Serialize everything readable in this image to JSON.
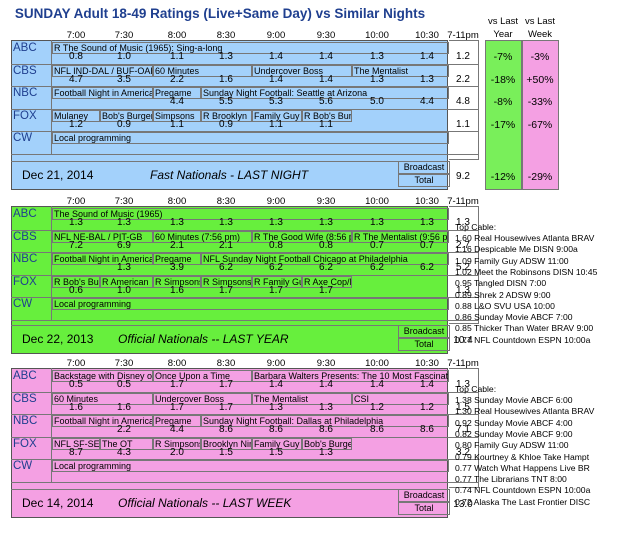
{
  "chart_data": {
    "type": "table",
    "title": "SUNDAY Adult 18-49 Ratings (Live+Same Day) vs Similar Nights",
    "columns": [
      "7:00",
      "7:30",
      "8:00",
      "8:30",
      "9:00",
      "9:30",
      "10:00",
      "10:30",
      "7-11pm"
    ],
    "compare_headers": {
      "last_year_top": "vs Last",
      "last_year_bottom": "Year",
      "last_week_top": "vs Last",
      "last_week_bottom": "Week"
    },
    "panels": [
      {
        "id": "p1",
        "date": "Dec 21, 2014",
        "label": "Fast Nationals - LAST NIGHT",
        "broadcast_label": "Broadcast",
        "total_label": "Total",
        "broadcast_total": "9.2",
        "vs_last_year_total": "-12%",
        "vs_last_week_total": "-29%",
        "networks": [
          {
            "name": "ABC",
            "programs": [
              {
                "title": "R The Sound of Music (1965): Sing-a-long",
                "start": 0,
                "span": 8
              }
            ],
            "values": [
              "0.8",
              "1.0",
              "1.1",
              "1.3",
              "1.4",
              "1.4",
              "1.3",
              "1.4"
            ],
            "total": "1.2",
            "vs_year": "-7%",
            "vs_week": "-3%"
          },
          {
            "name": "CBS",
            "programs": [
              {
                "title": "NFL IND-DAL / BUF-OAK",
                "start": 0,
                "span": 2
              },
              {
                "title": "60 Minutes",
                "start": 2,
                "span": 2
              },
              {
                "title": "Undercover Boss",
                "start": 4,
                "span": 2
              },
              {
                "title": "The Mentalist",
                "start": 6,
                "span": 2
              }
            ],
            "values": [
              "4.7",
              "3.5",
              "2.2",
              "1.6",
              "1.4",
              "1.4",
              "1.3",
              "1.3"
            ],
            "total": "2.2",
            "vs_year": "-18%",
            "vs_week": "+50%"
          },
          {
            "name": "NBC",
            "programs": [
              {
                "title": "Football Night in America",
                "start": 0,
                "span": 2
              },
              {
                "title": "Pregame",
                "start": 2,
                "span": 1
              },
              {
                "title": "Sunday Night Football: Seattle at Arizona",
                "start": 3,
                "span": 5
              }
            ],
            "values": [
              "",
              "",
              "4.4",
              "5.5",
              "5.3",
              "5.6",
              "5.0",
              "4.4"
            ],
            "total": "4.8",
            "vs_year": "-8%",
            "vs_week": "-33%"
          },
          {
            "name": "FOX",
            "programs": [
              {
                "title": "Mulaney",
                "start": 0,
                "span": 1
              },
              {
                "title": "Bob's Burgers",
                "start": 1,
                "span": 1
              },
              {
                "title": "Simpsons",
                "start": 2,
                "span": 1
              },
              {
                "title": "R Brooklyn",
                "start": 3,
                "span": 1
              },
              {
                "title": "Family Guy",
                "start": 4,
                "span": 1
              },
              {
                "title": "R Bob's Bur",
                "start": 5,
                "span": 1
              }
            ],
            "values": [
              "1.2",
              "0.9",
              "1.1",
              "0.9",
              "1.1",
              "1.1",
              "",
              ""
            ],
            "total": "1.1",
            "vs_year": "-17%",
            "vs_week": "-67%"
          },
          {
            "name": "CW",
            "programs": [
              {
                "title": "Local programming",
                "start": 0,
                "span": 8
              }
            ],
            "values": [
              "",
              "",
              "",
              "",
              "",
              "",
              "",
              ""
            ],
            "total": "",
            "vs_year": "",
            "vs_week": ""
          }
        ]
      },
      {
        "id": "p2",
        "date": "Dec 22, 2013",
        "label": "Official Nationals -- LAST YEAR",
        "broadcast_label": "Broadcast",
        "total_label": "Total",
        "broadcast_total": "10.4",
        "networks": [
          {
            "name": "ABC",
            "programs": [
              {
                "title": "The Sound of Music (1965)",
                "start": 0,
                "span": 8
              }
            ],
            "values": [
              "1.3",
              "1.3",
              "1.3",
              "1.3",
              "1.3",
              "1.3",
              "1.3",
              "1.3"
            ],
            "total": "1.3"
          },
          {
            "name": "CBS",
            "programs": [
              {
                "title": "NFL NE-BAL / PIT-GB",
                "start": 0,
                "span": 2
              },
              {
                "title": "60 Minutes (7:56 pm)",
                "start": 2,
                "span": 2
              },
              {
                "title": "R The Good Wife (8:56 p",
                "start": 4,
                "span": 2
              },
              {
                "title": "R The Mentalist (9:56 pm",
                "start": 6,
                "span": 2
              }
            ],
            "values": [
              "7.2",
              "6.9",
              "2.1",
              "2.1",
              "0.8",
              "0.8",
              "0.7",
              "0.7"
            ],
            "total": "2.7"
          },
          {
            "name": "NBC",
            "programs": [
              {
                "title": "Football Night in America",
                "start": 0,
                "span": 2
              },
              {
                "title": "Pregame",
                "start": 2,
                "span": 1
              },
              {
                "title": "NFL Sunday Night Football Chicago at Philadelphia",
                "start": 3,
                "span": 5
              }
            ],
            "values": [
              "",
              "1.3",
              "3.9",
              "6.2",
              "6.2",
              "6.2",
              "6.2",
              "6.2"
            ],
            "total": "5.2"
          },
          {
            "name": "FOX",
            "programs": [
              {
                "title": "R Bob's Bur",
                "start": 0,
                "span": 1
              },
              {
                "title": "R American",
                "start": 1,
                "span": 1
              },
              {
                "title": "R Simpsons",
                "start": 2,
                "span": 1
              },
              {
                "title": "R Simpsons",
                "start": 3,
                "span": 1
              },
              {
                "title": "R Family Gu",
                "start": 4,
                "span": 1
              },
              {
                "title": "R Axe Cop/R",
                "start": 5,
                "span": 1
              }
            ],
            "values": [
              "0.6",
              "1.0",
              "1.6",
              "1.7",
              "1.7",
              "1.7",
              "",
              ""
            ],
            "total": "1.3"
          },
          {
            "name": "CW",
            "programs": [
              {
                "title": "Local programming",
                "start": 0,
                "span": 8
              }
            ],
            "values": [
              "",
              "",
              "",
              "",
              "",
              "",
              "",
              ""
            ],
            "total": ""
          }
        ],
        "top_cable_header": "Top Cable:",
        "top_cable": [
          "1.60 Real Housewives Atlanta BRAV",
          "1.16 Despicable Me DISN 9:00a",
          "1.09 Family Guy ADSW 11:00",
          "1.02 Meet the Robinsons DISN 10:45",
          "0.95 Tangled DISN 7:00",
          "0.89 Shrek 2 ADSW 9:00",
          "0.88 L&O SVU USA 10:00",
          "0.86 Sunday Movie ABCF 7:00",
          "0.85 Thicker Than Water BRAV 9:00",
          "0.77 NFL Countdown ESPN 10:00a"
        ]
      },
      {
        "id": "p3",
        "date": "Dec 14, 2014",
        "label": "Official Nationals -- LAST WEEK",
        "broadcast_label": "Broadcast",
        "total_label": "Total",
        "broadcast_total": "13.0",
        "networks": [
          {
            "name": "ABC",
            "programs": [
              {
                "title": "Backstage with Disney o",
                "start": 0,
                "span": 2
              },
              {
                "title": "Once Upon a Time",
                "start": 2,
                "span": 2
              },
              {
                "title": "Barbara Walters Presents: The 10 Most Fascinating",
                "start": 4,
                "span": 4
              }
            ],
            "values": [
              "0.5",
              "0.5",
              "1.7",
              "1.7",
              "1.4",
              "1.4",
              "1.4",
              "1.4"
            ],
            "total": "1.3"
          },
          {
            "name": "CBS",
            "programs": [
              {
                "title": "60 Minutes",
                "start": 0,
                "span": 2
              },
              {
                "title": "Undercover Boss",
                "start": 2,
                "span": 2
              },
              {
                "title": "The Mentalist",
                "start": 4,
                "span": 2
              },
              {
                "title": "CSI",
                "start": 6,
                "span": 2
              }
            ],
            "values": [
              "1.6",
              "1.6",
              "1.7",
              "1.7",
              "1.3",
              "1.3",
              "1.2",
              "1.2"
            ],
            "total": "1.5"
          },
          {
            "name": "NBC",
            "programs": [
              {
                "title": "Football Night in America",
                "start": 0,
                "span": 2
              },
              {
                "title": "Pregame",
                "start": 2,
                "span": 1
              },
              {
                "title": "Sunday Night Football: Dallas at Philadelphia",
                "start": 3,
                "span": 5
              }
            ],
            "values": [
              "",
              "2.2",
              "4.4",
              "8.6",
              "8.6",
              "8.6",
              "8.6",
              "8.6"
            ],
            "total": "7.1"
          },
          {
            "name": "FOX",
            "programs": [
              {
                "title": "NFL SF-SEA",
                "start": 0,
                "span": 1
              },
              {
                "title": "The OT",
                "start": 1,
                "span": 1
              },
              {
                "title": "R Simpsons",
                "start": 2,
                "span": 1
              },
              {
                "title": "Brooklyn Nin",
                "start": 3,
                "span": 1
              },
              {
                "title": "Family Guy",
                "start": 4,
                "span": 1
              },
              {
                "title": "Bob's Burge",
                "start": 5,
                "span": 1
              }
            ],
            "values": [
              "8.7",
              "4.3",
              "2.0",
              "1.5",
              "1.5",
              "1.3",
              "",
              ""
            ],
            "total": "3.2"
          },
          {
            "name": "CW",
            "programs": [
              {
                "title": "Local programming",
                "start": 0,
                "span": 8
              }
            ],
            "values": [
              "",
              "",
              "",
              "",
              "",
              "",
              "",
              ""
            ],
            "total": ""
          }
        ],
        "top_cable_header": "Top Cable:",
        "top_cable": [
          "1.38 Sunday Movie ABCF 6:00",
          "1.30 Real Housewives Atlanta BRAV",
          "0.92 Sunday Movie ABCF 4:00",
          "0.82 Sunday Movie ABCF 9:00",
          "0.80 Family Guy ADSW 11:00",
          "0.79 Kourtney & Khloe Take Hampt",
          "0.77 Watch What Happens Live BR",
          "0.77 The Librarians TNT 8:00",
          "0.74 NFL Countdown ESPN 10:00a",
          "0.72 Alaska The Last Frontier DISC"
        ]
      }
    ],
    "colors": {
      "panel_last_night": "#a3d1fb",
      "panel_last_year": "#67ef3d",
      "panel_last_week": "#f4a0e3",
      "vs_year_bg": "#79ef5a",
      "vs_week_bg": "#f4a0e3",
      "label_blue": "#1f3f8f"
    }
  }
}
